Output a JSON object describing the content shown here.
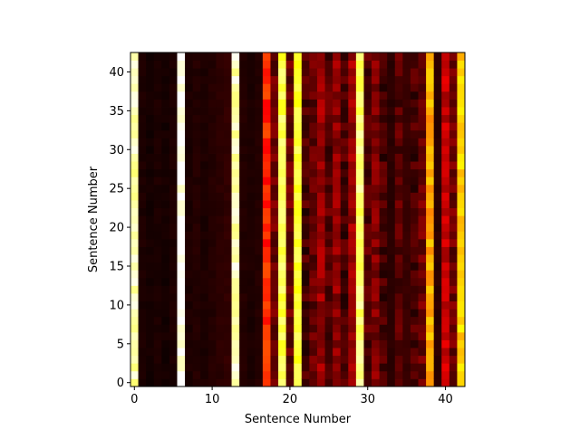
{
  "chart_data": {
    "type": "heatmap",
    "colormap": "hot",
    "title": "",
    "xlabel": "Sentence Number",
    "ylabel": "Sentence Number",
    "rows": 43,
    "cols": 43,
    "xlim": [
      -0.5,
      42.5
    ],
    "ylim": [
      -0.5,
      42.5
    ],
    "origin": "lower",
    "xticks": [
      0,
      10,
      20,
      30,
      40
    ],
    "yticks": [
      0,
      5,
      10,
      15,
      20,
      25,
      30,
      35,
      40
    ],
    "vmin": 0,
    "vmax": 1,
    "column_values": [
      0.92,
      0.04,
      0.03,
      0.04,
      0.03,
      0.04,
      0.99,
      0.04,
      0.05,
      0.04,
      0.05,
      0.06,
      0.07,
      0.93,
      0.05,
      0.04,
      0.05,
      0.42,
      0.15,
      0.82,
      0.15,
      0.8,
      0.1,
      0.14,
      0.22,
      0.12,
      0.2,
      0.1,
      0.22,
      0.86,
      0.12,
      0.18,
      0.1,
      0.06,
      0.12,
      0.08,
      0.1,
      0.15,
      0.62,
      0.06,
      0.28,
      0.15,
      0.68
    ],
    "row_variation": "slight per-cell variation along each column"
  }
}
